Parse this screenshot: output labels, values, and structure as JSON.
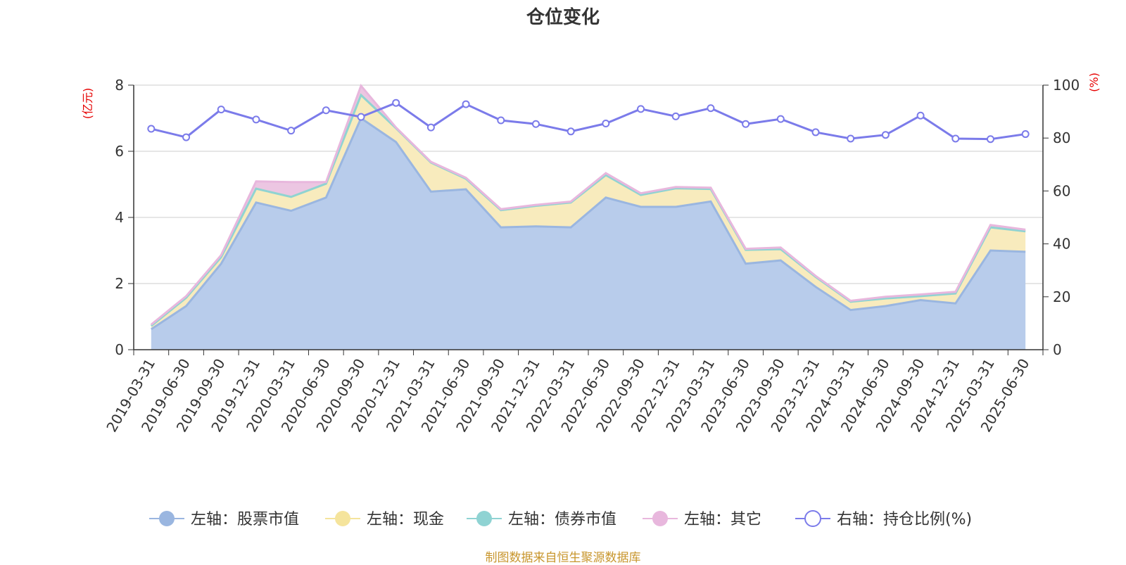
{
  "chart_data": {
    "type": "area",
    "title": "仓位变化",
    "left_unit": "(亿元)",
    "right_unit": "(%)",
    "y_left_lim": [
      0,
      8
    ],
    "y_left_ticks": [
      "0",
      "2",
      "4",
      "6",
      "8"
    ],
    "y_right_lim": [
      0,
      100
    ],
    "y_right_ticks": [
      "0",
      "20",
      "40",
      "60",
      "80",
      "100"
    ],
    "grid": true,
    "legend_position": "bottom",
    "categories": [
      "2019-03-31",
      "2019-06-30",
      "2019-09-30",
      "2019-12-31",
      "2020-03-31",
      "2020-06-30",
      "2020-09-30",
      "2020-12-31",
      "2021-03-31",
      "2021-06-30",
      "2021-09-30",
      "2021-12-31",
      "2022-03-31",
      "2022-06-30",
      "2022-09-30",
      "2022-12-31",
      "2023-03-31",
      "2023-06-30",
      "2023-09-30",
      "2023-12-31",
      "2024-03-31",
      "2024-06-30",
      "2024-09-30",
      "2024-12-31",
      "2025-03-31",
      "2025-06-30"
    ],
    "series": [
      {
        "name": "左轴：股票市值",
        "axis": "left",
        "type": "stacked-area",
        "color": "#9ab6e0",
        "fill": "#b8cceb",
        "values": [
          0.62,
          1.32,
          2.6,
          4.45,
          4.2,
          4.6,
          7.0,
          6.28,
          4.78,
          4.85,
          3.7,
          3.73,
          3.7,
          4.6,
          4.32,
          4.32,
          4.48,
          2.6,
          2.7,
          1.9,
          1.2,
          1.32,
          1.5,
          1.4,
          3.0,
          2.96
        ]
      },
      {
        "name": "左轴：现金",
        "axis": "left",
        "type": "stacked-area",
        "color": "#f5e49c",
        "fill": "#f8ebbd",
        "values": [
          0.1,
          0.25,
          0.2,
          0.42,
          0.42,
          0.42,
          0.7,
          0.42,
          0.88,
          0.32,
          0.52,
          0.62,
          0.75,
          0.68,
          0.36,
          0.56,
          0.38,
          0.42,
          0.34,
          0.3,
          0.25,
          0.23,
          0.12,
          0.3,
          0.7,
          0.62
        ]
      },
      {
        "name": "左轴：债券市值",
        "axis": "left",
        "type": "stacked-area",
        "color": "#8fd3d3",
        "fill": "#bfe5e5",
        "values": [
          0,
          0,
          0,
          0,
          0,
          0,
          0,
          0,
          0,
          0,
          0,
          0,
          0,
          0,
          0,
          0,
          0,
          0,
          0,
          0,
          0,
          0,
          0,
          0,
          0,
          0
        ]
      },
      {
        "name": "左轴：其它",
        "axis": "left",
        "type": "stacked-area",
        "color": "#e8b7dd",
        "fill": "#ecc6e2",
        "values": [
          0.04,
          0.05,
          0.06,
          0.22,
          0.45,
          0.05,
          0.28,
          0.02,
          0.02,
          0.03,
          0.03,
          0.03,
          0.03,
          0.06,
          0.05,
          0.04,
          0.04,
          0.03,
          0.05,
          0.03,
          0.03,
          0.05,
          0.05,
          0.05,
          0.07,
          0.05
        ]
      },
      {
        "name": "右轴：持仓比例(%)",
        "axis": "right",
        "type": "line",
        "color": "#7b7bea",
        "values": [
          83.5,
          80.3,
          90.8,
          87,
          82.8,
          90.5,
          88,
          93.3,
          84,
          92.8,
          86.7,
          85.3,
          82.5,
          85.5,
          91,
          88.2,
          91.3,
          85.3,
          87.2,
          82.2,
          79.8,
          81.2,
          88.5,
          79.8,
          79.6,
          81.5
        ]
      }
    ]
  },
  "source_note": "制图数据来自恒生聚源数据库"
}
